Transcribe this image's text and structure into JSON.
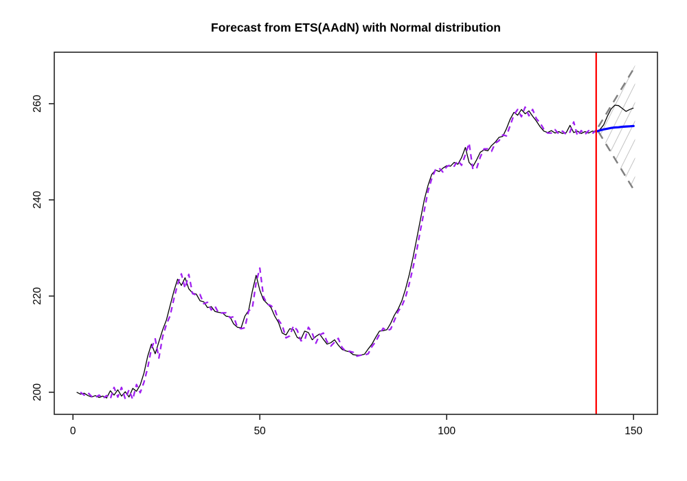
{
  "chart_data": {
    "type": "line",
    "title": "Forecast from ETS(AAdN) with Normal distribution",
    "xlabel": "",
    "ylabel": "",
    "xlim": [
      -5,
      156.4
    ],
    "ylim": [
      195.4,
      270.7
    ],
    "x_ticks": [
      0,
      50,
      100,
      150
    ],
    "y_ticks": [
      200,
      220,
      240,
      260
    ],
    "grid": false,
    "legend": "none",
    "forecast_origin_x": 140,
    "colors": {
      "observed": "#000000",
      "fitted": "#A020F0",
      "forecast_mean": "#0000FF",
      "interval_border": "#808080",
      "hatch": "#BDBDBD",
      "origin_line": "#FF0000",
      "axis": "#222222"
    },
    "series": [
      {
        "name": "observed",
        "style": "solid",
        "x_start": 1,
        "values": [
          200.0,
          199.6,
          199.8,
          199.3,
          199.0,
          199.3,
          198.9,
          199.2,
          198.8,
          200.3,
          199.4,
          200.5,
          199.2,
          200.1,
          199.0,
          200.8,
          200.2,
          201.5,
          204.0,
          207.5,
          210.0,
          208.0,
          210.5,
          213.0,
          215.0,
          218.0,
          221.0,
          223.5,
          222.2,
          223.8,
          221.5,
          220.6,
          220.4,
          219.0,
          218.8,
          217.6,
          217.8,
          216.8,
          216.6,
          216.5,
          215.8,
          215.7,
          214.2,
          213.5,
          213.4,
          215.8,
          217.0,
          221.0,
          224.3,
          221.2,
          219.2,
          218.4,
          217.6,
          215.8,
          214.5,
          212.3,
          211.9,
          213.2,
          213.0,
          211.4,
          211.0,
          212.7,
          212.4,
          210.9,
          211.6,
          212.1,
          211.0,
          210.0,
          210.3,
          210.9,
          209.8,
          208.9,
          208.6,
          208.4,
          207.8,
          207.7,
          207.7,
          207.9,
          209.0,
          210.0,
          211.4,
          212.7,
          212.8,
          213.0,
          214.3,
          216.0,
          217.3,
          219.0,
          221.5,
          224.5,
          228.0,
          232.0,
          236.0,
          240.0,
          243.0,
          245.3,
          246.2,
          245.9,
          246.6,
          247.1,
          247.0,
          247.8,
          247.4,
          248.8,
          250.9,
          247.8,
          246.9,
          248.3,
          249.9,
          250.4,
          250.2,
          251.3,
          252.0,
          253.0,
          253.2,
          254.8,
          256.8,
          258.2,
          257.6,
          258.8,
          257.9,
          258.5,
          257.4,
          256.4,
          255.2,
          254.3,
          254.0,
          254.4,
          253.9,
          254.2,
          253.8,
          254.0,
          255.5,
          254.0,
          254.3,
          253.8,
          254.2,
          253.9,
          254.3,
          254.1,
          254.6,
          255.6,
          257.4,
          258.9,
          259.7,
          259.6,
          259.0,
          258.4,
          258.8,
          259.1
        ]
      },
      {
        "name": "fitted",
        "style": "dashed",
        "x_start": 2,
        "values": [
          200.0,
          199.4,
          199.9,
          199.1,
          198.9,
          199.4,
          198.7,
          199.3,
          198.6,
          201.0,
          199.0,
          201.0,
          198.6,
          200.5,
          198.5,
          201.6,
          199.9,
          202.1,
          205.1,
          209.1,
          211.1,
          207.1,
          211.6,
          214.1,
          215.9,
          219.4,
          222.4,
          224.6,
          221.6,
          224.5,
          220.5,
          220.2,
          220.3,
          218.4,
          218.7,
          217.1,
          217.9,
          216.4,
          216.5,
          216.5,
          215.5,
          215.7,
          213.5,
          213.2,
          213.4,
          216.9,
          217.5,
          222.8,
          225.8,
          219.8,
          218.3,
          218.0,
          217.2,
          215.0,
          213.9,
          211.3,
          211.7,
          213.8,
          212.9,
          210.7,
          210.8,
          213.5,
          212.3,
          210.2,
          211.9,
          212.3,
          210.5,
          209.6,
          210.4,
          211.2,
          209.3,
          208.5,
          208.5,
          208.3,
          207.5,
          207.7,
          207.7,
          208.0,
          209.5,
          210.5,
          212.0,
          213.3,
          212.8,
          213.1,
          214.9,
          216.8,
          217.9,
          219.8,
          222.6,
          225.9,
          229.6,
          233.8,
          237.8,
          241.8,
          244.4,
          246.3,
          246.6,
          245.8,
          246.9,
          247.3,
          247.0,
          248.2,
          247.2,
          249.4,
          251.8,
          246.4,
          246.5,
          248.9,
          250.6,
          250.6,
          250.1,
          251.8,
          252.3,
          253.5,
          253.3,
          255.5,
          257.7,
          258.8,
          257.3,
          259.3,
          257.5,
          258.8,
          256.9,
          256.0,
          254.7,
          253.9,
          253.9,
          254.6,
          253.7,
          254.3,
          253.6,
          254.1,
          256.2,
          253.3,
          254.4,
          253.6,
          254.4,
          253.8,
          254.5
        ]
      },
      {
        "name": "forecast_mean",
        "style": "solid_thick",
        "x": [
          140,
          141,
          142,
          143,
          144,
          145,
          146,
          147,
          148,
          149,
          150
        ],
        "values": [
          254.2,
          254.45,
          254.65,
          254.8,
          254.95,
          255.05,
          255.1,
          255.2,
          255.25,
          255.3,
          255.35
        ]
      },
      {
        "name": "prediction_interval",
        "style": "dashed_gray_hatched",
        "apex": [
          140.3,
          254.7
        ],
        "x": [
          140.6,
          150.3
        ],
        "upper": [
          255.2,
          267.6
        ],
        "lower": [
          254.2,
          241.8
        ]
      }
    ]
  }
}
